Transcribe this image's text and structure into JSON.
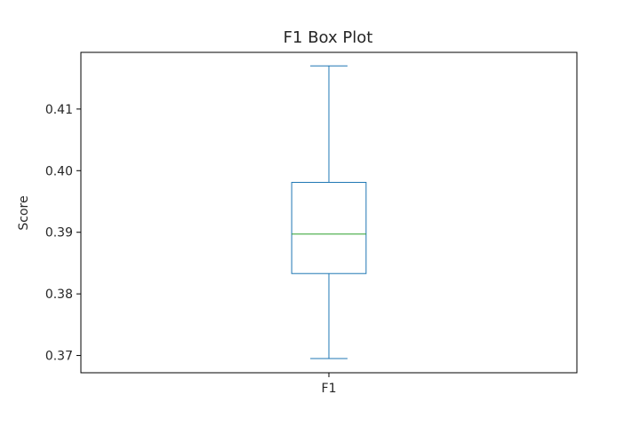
{
  "chart_data": {
    "type": "box",
    "title": "F1 Box Plot",
    "xlabel": "",
    "ylabel": "Score",
    "categories": [
      "F1"
    ],
    "boxes": [
      {
        "category": "F1",
        "whisker_low": 0.3695,
        "q1": 0.3833,
        "median": 0.3897,
        "q3": 0.3981,
        "whisker_high": 0.417
      }
    ],
    "ylim": [
      0.3672,
      0.4192
    ],
    "yticks": [
      "0.37",
      "0.38",
      "0.39",
      "0.40",
      "0.41"
    ],
    "ytick_values": [
      0.37,
      0.38,
      0.39,
      0.4,
      0.41
    ],
    "grid": false,
    "colors": {
      "box": "#1f77b4",
      "median": "#2ca02c",
      "axes": "#000000",
      "text": "#262626"
    }
  }
}
